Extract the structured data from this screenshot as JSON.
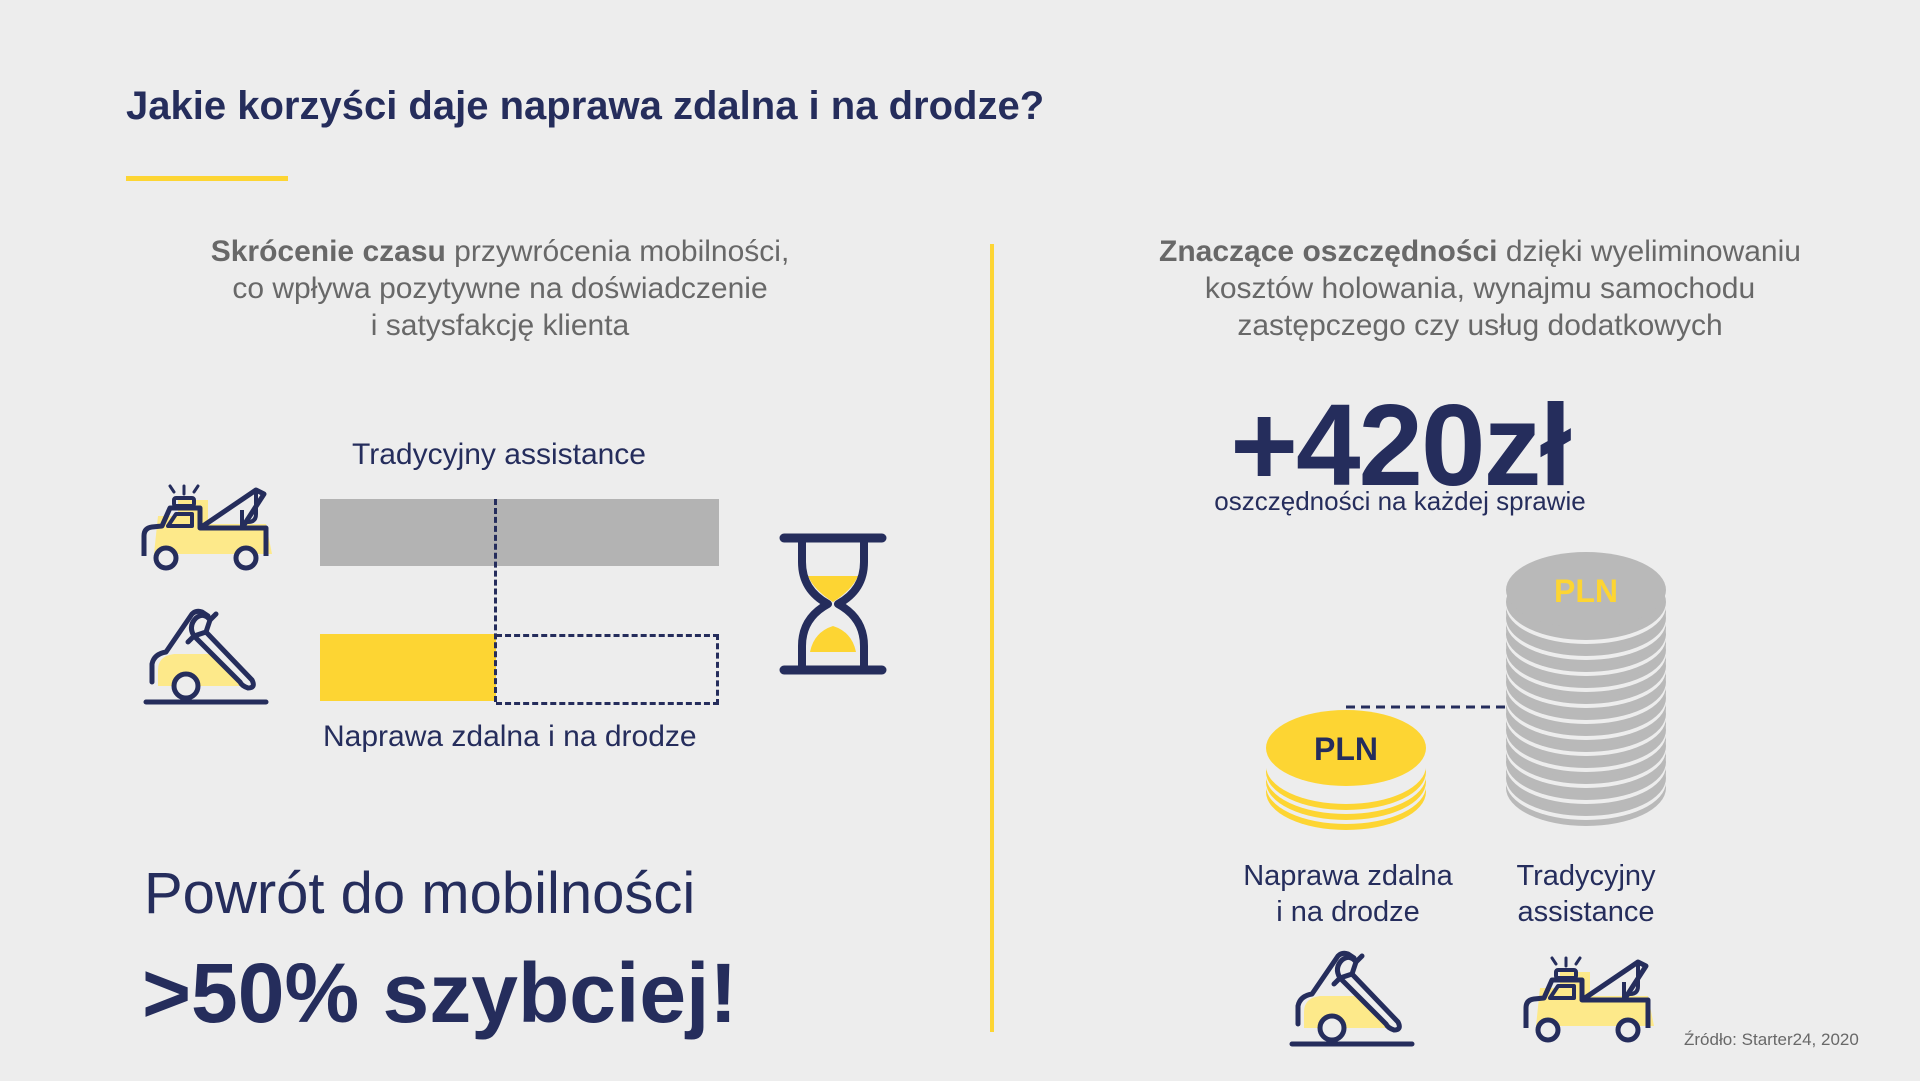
{
  "title": "Jakie korzyści daje naprawa zdalna i na drodze?",
  "left": {
    "description": {
      "bold": "Skrócenie czasu",
      "lines": [
        " przywrócenia mobilności,",
        "co wpływa pozytywne na doświadczenie",
        "i satysfakcję klienta"
      ]
    },
    "comparison": {
      "traditional_label": "Tradycyjny assistance",
      "remote_label": "Naprawa zdalna i na drodze",
      "remote_share_of_traditional": 0.44
    },
    "headline": {
      "line1": "Powrót do mobilności",
      "line2": ">50% szybciej!"
    }
  },
  "right": {
    "description": {
      "bold": "Znaczące oszczędności",
      "lines": [
        " dzięki wyeliminowaniu",
        "kosztów holowania, wynajmu samochodu",
        "zastępczego czy usług dodatkowych"
      ]
    },
    "savings": {
      "value": "+420zł",
      "caption": "oszczędności na każdej sprawie"
    },
    "coins": {
      "currency_label": "PLN",
      "remote_label_lines": [
        "Naprawa zdalna",
        "i na drodze"
      ],
      "traditional_label_lines": [
        "Tradycyjny",
        "assistance"
      ]
    }
  },
  "source": "Źródło: Starter24, 2020",
  "colors": {
    "navy": "#252d5c",
    "yellow": "#fdd533",
    "light_yellow": "#fde98a",
    "gray_bar": "#b3b3b3",
    "coin_gray": "#b9b9b9",
    "text_gray": "#686868",
    "background": "#ededed"
  },
  "icons": [
    "tow-truck-icon",
    "car-repair-wrench-icon",
    "hourglass-icon",
    "coin-stack-icon"
  ]
}
